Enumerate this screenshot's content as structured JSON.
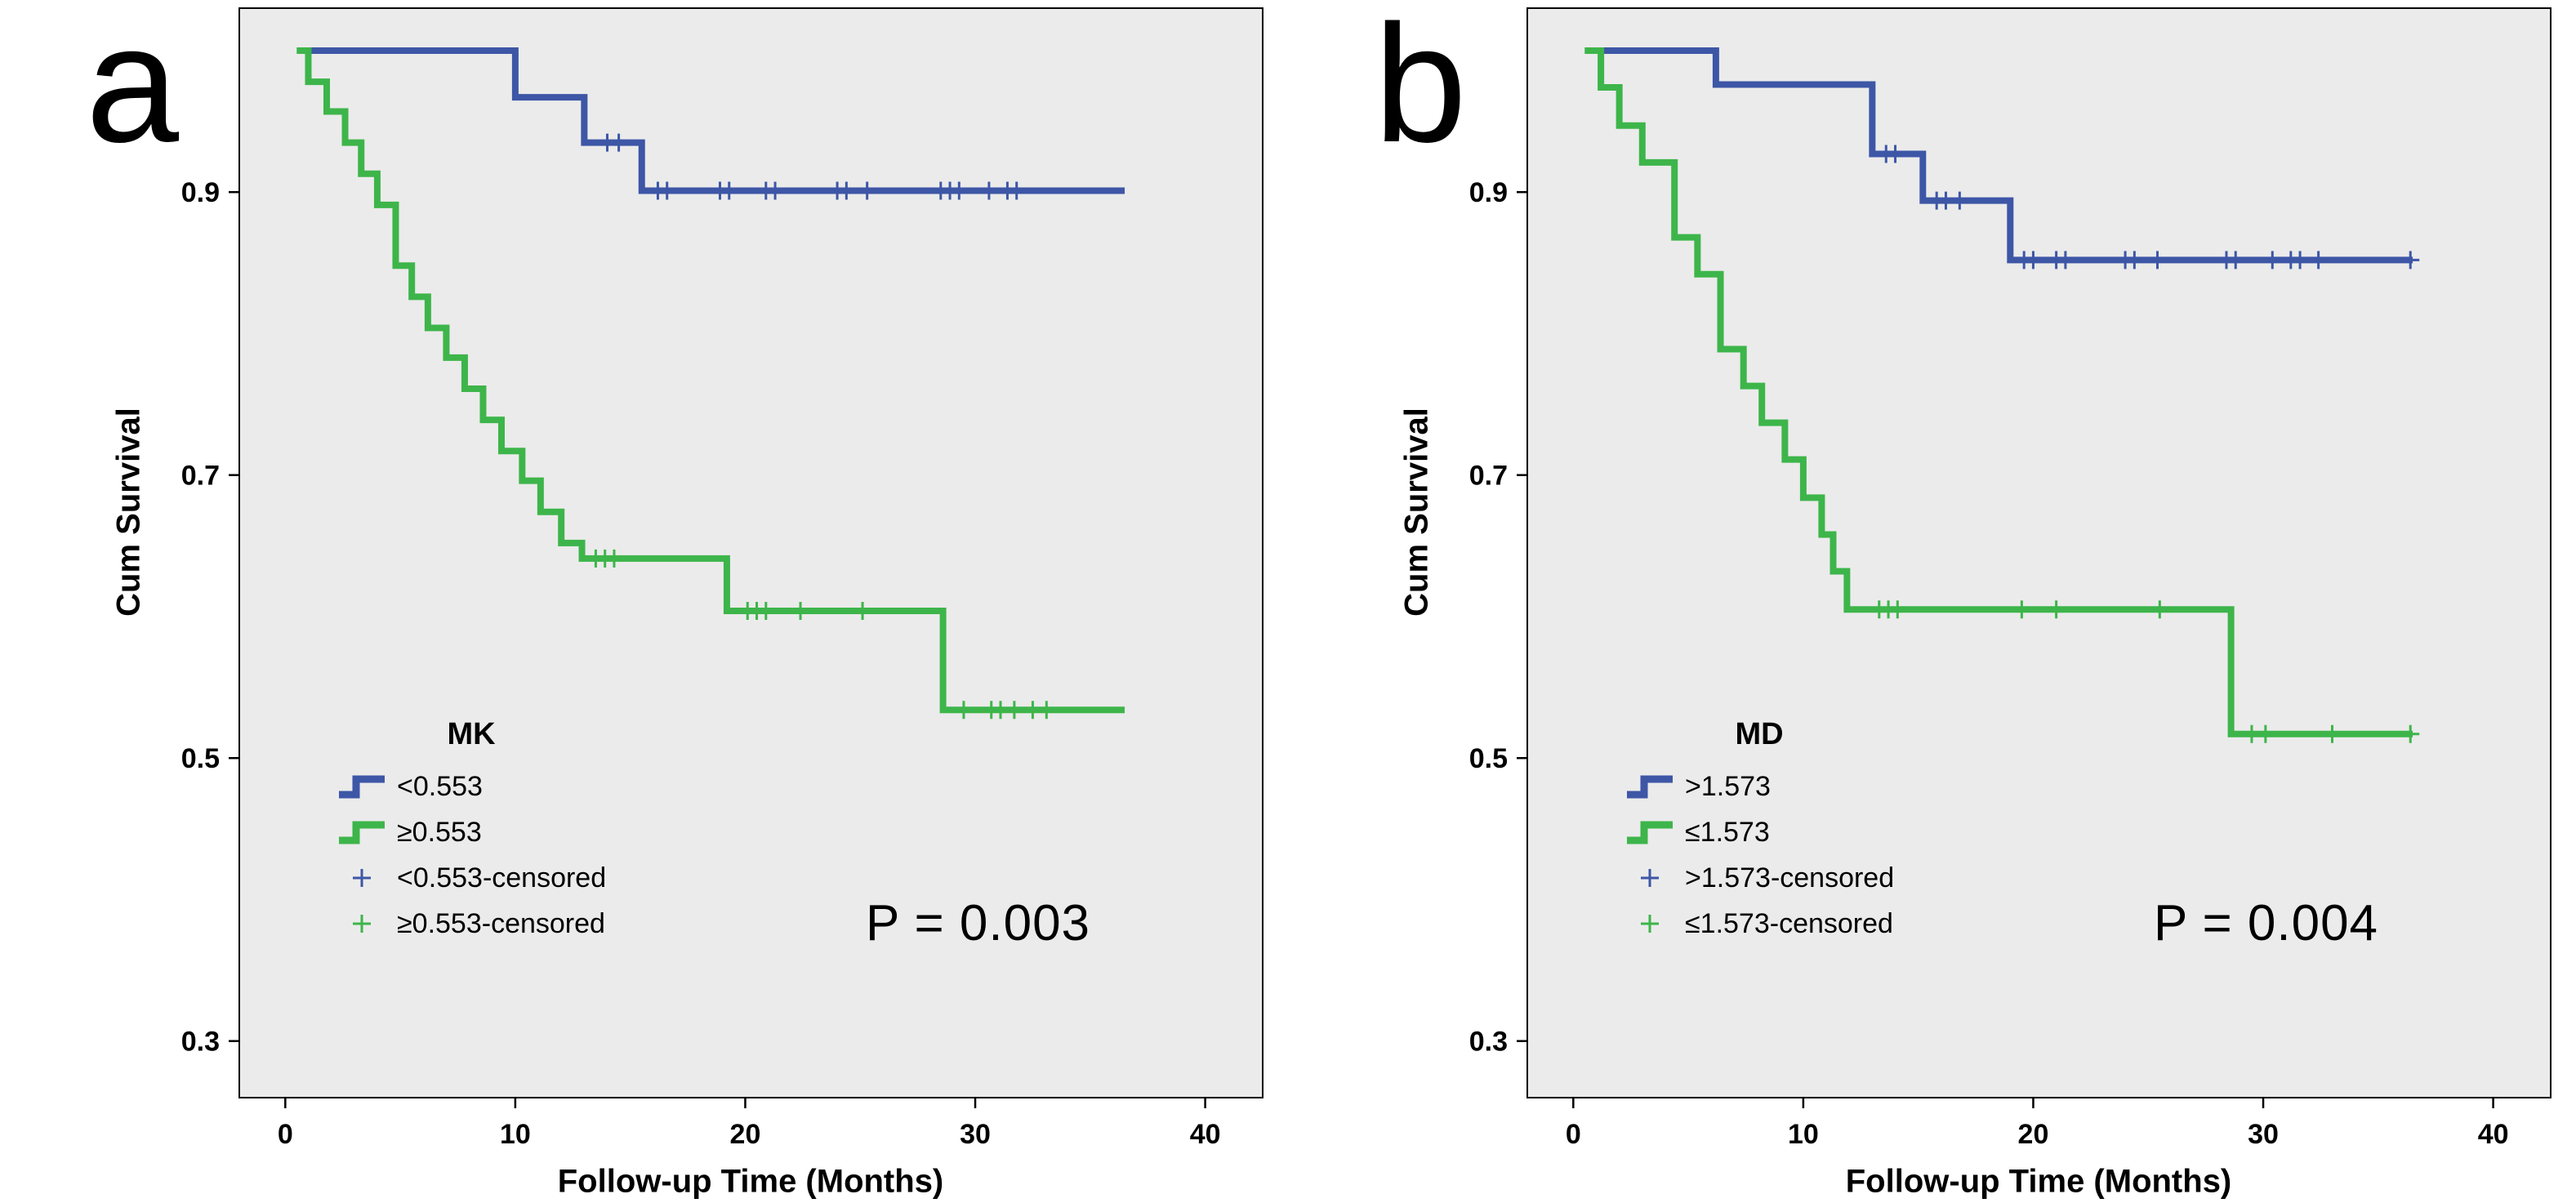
{
  "chart_data": [
    {
      "type": "line",
      "subtype": "kaplan-meier-step",
      "panel_label": "a",
      "xlabel": "Follow-up Time (Months)",
      "ylabel": "Cum Survival",
      "xlim": [
        -2,
        42.5
      ],
      "ylim": [
        0.26,
        1.03
      ],
      "xticks": [
        0,
        10,
        20,
        30,
        40
      ],
      "yticks": [
        0.3,
        0.5,
        0.7,
        0.9
      ],
      "plot_bg": "#ebebeb",
      "annotation": "P = 0.003",
      "legend": {
        "title": "MK",
        "entries": [
          {
            "label": "<0.553",
            "color": "#3d56a6",
            "style": "line"
          },
          {
            "label": "≥0.553",
            "color": "#3db54a",
            "style": "line"
          },
          {
            "label": "<0.553-censored",
            "color": "#3d56a6",
            "style": "censor"
          },
          {
            "label": "≥0.553-censored",
            "color": "#3db54a",
            "style": "censor"
          }
        ]
      },
      "series": [
        {
          "name": "<0.553",
          "color": "#3d56a6",
          "drops": [
            [
              0.5,
              1.0
            ],
            [
              10.0,
              0.967
            ],
            [
              13.0,
              0.935
            ],
            [
              15.5,
              0.901
            ]
          ],
          "end_x": 36.5,
          "censored": [
            [
              14.0,
              0.935
            ],
            [
              14.5,
              0.935
            ],
            [
              16.2,
              0.901
            ],
            [
              16.6,
              0.901
            ],
            [
              18.9,
              0.901
            ],
            [
              19.3,
              0.901
            ],
            [
              20.9,
              0.901
            ],
            [
              21.3,
              0.901
            ],
            [
              24.0,
              0.901
            ],
            [
              24.4,
              0.901
            ],
            [
              25.3,
              0.901
            ],
            [
              28.5,
              0.901
            ],
            [
              28.9,
              0.901
            ],
            [
              29.3,
              0.901
            ],
            [
              30.6,
              0.901
            ],
            [
              31.4,
              0.901
            ],
            [
              31.8,
              0.901
            ]
          ]
        },
        {
          "name": "≥0.553",
          "color": "#3db54a",
          "drops": [
            [
              0.5,
              1.0
            ],
            [
              1.0,
              0.978
            ],
            [
              1.8,
              0.957
            ],
            [
              2.6,
              0.935
            ],
            [
              3.3,
              0.913
            ],
            [
              4.0,
              0.891
            ],
            [
              4.8,
              0.848
            ],
            [
              5.5,
              0.826
            ],
            [
              6.2,
              0.804
            ],
            [
              7.0,
              0.783
            ],
            [
              7.8,
              0.761
            ],
            [
              8.6,
              0.739
            ],
            [
              9.4,
              0.717
            ],
            [
              10.3,
              0.696
            ],
            [
              11.1,
              0.674
            ],
            [
              12.0,
              0.652
            ],
            [
              12.9,
              0.641
            ],
            [
              19.2,
              0.604
            ],
            [
              28.6,
              0.534
            ]
          ],
          "end_x": 36.5,
          "censored": [
            [
              13.5,
              0.641
            ],
            [
              13.9,
              0.641
            ],
            [
              14.3,
              0.641
            ],
            [
              20.1,
              0.604
            ],
            [
              20.5,
              0.604
            ],
            [
              20.9,
              0.604
            ],
            [
              22.4,
              0.604
            ],
            [
              25.1,
              0.604
            ],
            [
              29.5,
              0.534
            ],
            [
              30.7,
              0.534
            ],
            [
              31.1,
              0.534
            ],
            [
              31.7,
              0.534
            ],
            [
              32.5,
              0.534
            ],
            [
              33.1,
              0.534
            ]
          ]
        }
      ]
    },
    {
      "type": "line",
      "subtype": "kaplan-meier-step",
      "panel_label": "b",
      "xlabel": "Follow-up Time (Months)",
      "ylabel": "Cum Survival",
      "xlim": [
        -2,
        42.5
      ],
      "ylim": [
        0.26,
        1.03
      ],
      "xticks": [
        0,
        10,
        20,
        30,
        40
      ],
      "yticks": [
        0.3,
        0.5,
        0.7,
        0.9
      ],
      "plot_bg": "#ebebeb",
      "annotation": "P = 0.004",
      "legend": {
        "title": "MD",
        "entries": [
          {
            "label": ">1.573",
            "color": "#3d56a6",
            "style": "line"
          },
          {
            "label": "≤1.573",
            "color": "#3db54a",
            "style": "line"
          },
          {
            "label": ">1.573-censored",
            "color": "#3d56a6",
            "style": "censor"
          },
          {
            "label": "≤1.573-censored",
            "color": "#3db54a",
            "style": "censor"
          }
        ]
      },
      "series": [
        {
          "name": ">1.573",
          "color": "#3d56a6",
          "drops": [
            [
              0.5,
              1.0
            ],
            [
              6.2,
              0.976
            ],
            [
              13.0,
              0.927
            ],
            [
              15.2,
              0.894
            ],
            [
              19.0,
              0.852
            ]
          ],
          "end_x": 36.5,
          "censored": [
            [
              13.6,
              0.927
            ],
            [
              14.0,
              0.927
            ],
            [
              15.8,
              0.894
            ],
            [
              16.2,
              0.894
            ],
            [
              16.8,
              0.894
            ],
            [
              19.6,
              0.852
            ],
            [
              20.0,
              0.852
            ],
            [
              21.0,
              0.852
            ],
            [
              21.4,
              0.852
            ],
            [
              24.0,
              0.852
            ],
            [
              24.4,
              0.852
            ],
            [
              25.4,
              0.852
            ],
            [
              28.4,
              0.852
            ],
            [
              28.8,
              0.852
            ],
            [
              30.4,
              0.852
            ],
            [
              31.2,
              0.852
            ],
            [
              31.6,
              0.852
            ],
            [
              32.4,
              0.852
            ],
            [
              36.4,
              0.852
            ]
          ]
        },
        {
          "name": "≤1.573",
          "color": "#3db54a",
          "drops": [
            [
              0.5,
              1.0
            ],
            [
              1.2,
              0.974
            ],
            [
              2.0,
              0.947
            ],
            [
              3.0,
              0.921
            ],
            [
              4.4,
              0.868
            ],
            [
              5.4,
              0.842
            ],
            [
              6.4,
              0.789
            ],
            [
              7.4,
              0.763
            ],
            [
              8.2,
              0.737
            ],
            [
              9.2,
              0.711
            ],
            [
              10.0,
              0.684
            ],
            [
              10.8,
              0.658
            ],
            [
              11.3,
              0.632
            ],
            [
              11.9,
              0.605
            ],
            [
              28.6,
              0.517
            ]
          ],
          "end_x": 36.5,
          "censored": [
            [
              13.3,
              0.605
            ],
            [
              13.7,
              0.605
            ],
            [
              14.1,
              0.605
            ],
            [
              19.5,
              0.605
            ],
            [
              21.0,
              0.605
            ],
            [
              25.5,
              0.605
            ],
            [
              29.5,
              0.517
            ],
            [
              30.1,
              0.517
            ],
            [
              33.0,
              0.517
            ],
            [
              36.4,
              0.517
            ]
          ]
        }
      ]
    }
  ]
}
